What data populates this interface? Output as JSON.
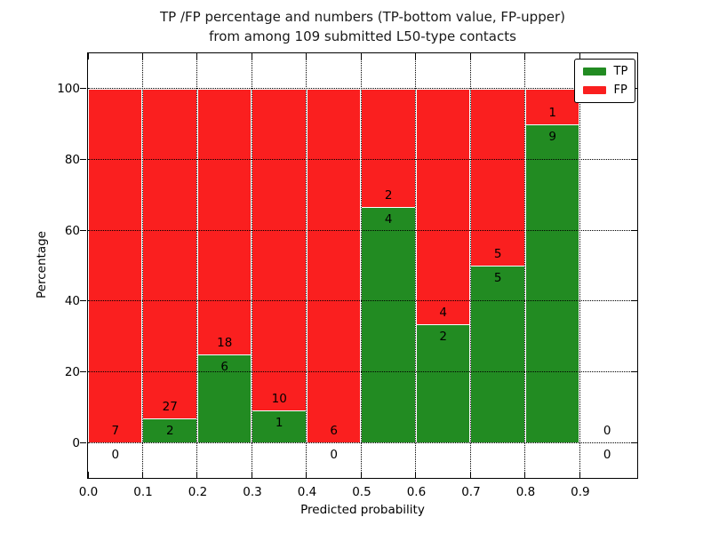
{
  "title": {
    "line1": "TP /FP percentage and numbers (TP-bottom value, FP-upper)",
    "line2": "from among 109 submitted L50-type contacts"
  },
  "chart_data": {
    "type": "bar",
    "stacked": true,
    "title": "TP /FP percentage and numbers (TP-bottom value, FP-upper) from among 109 submitted L50-type contacts",
    "xlabel": "Predicted probability",
    "ylabel": "Percentage",
    "xlim": [
      0,
      1.005
    ],
    "ylim": [
      -10,
      110
    ],
    "grid": true,
    "legend_position": "upper right",
    "total_submitted_contacts": 109,
    "x_ticks": [
      "0.0",
      "0.1",
      "0.2",
      "0.3",
      "0.4",
      "0.5",
      "0.6",
      "0.7",
      "0.8",
      "0.9"
    ],
    "x_tick_values": [
      0,
      0.1,
      0.2,
      0.3,
      0.4,
      0.5,
      0.6,
      0.7,
      0.8,
      0.9
    ],
    "y_ticks": [
      0,
      20,
      40,
      60,
      80,
      100
    ],
    "bin_width": 0.1,
    "series": [
      {
        "name": "TP",
        "color": "#228b22",
        "values": [
          0,
          2,
          6,
          1,
          0,
          4,
          2,
          5,
          9,
          0
        ]
      },
      {
        "name": "FP",
        "color": "#fa1f1f",
        "values": [
          7,
          27,
          18,
          10,
          6,
          2,
          4,
          5,
          1,
          0
        ]
      }
    ],
    "bins": [
      {
        "x0": 0.0,
        "x1": 0.1,
        "tp": 0,
        "fp": 7,
        "tp_pct": 0,
        "fp_pct": 100
      },
      {
        "x0": 0.1,
        "x1": 0.2,
        "tp": 2,
        "fp": 27,
        "tp_pct": 6.9,
        "fp_pct": 93.1
      },
      {
        "x0": 0.2,
        "x1": 0.3,
        "tp": 6,
        "fp": 18,
        "tp_pct": 25,
        "fp_pct": 75
      },
      {
        "x0": 0.3,
        "x1": 0.4,
        "tp": 1,
        "fp": 10,
        "tp_pct": 9.09,
        "fp_pct": 90.91
      },
      {
        "x0": 0.4,
        "x1": 0.5,
        "tp": 0,
        "fp": 6,
        "tp_pct": 0,
        "fp_pct": 100
      },
      {
        "x0": 0.5,
        "x1": 0.6,
        "tp": 4,
        "fp": 2,
        "tp_pct": 66.67,
        "fp_pct": 33.33
      },
      {
        "x0": 0.6,
        "x1": 0.7,
        "tp": 2,
        "fp": 4,
        "tp_pct": 33.33,
        "fp_pct": 66.67
      },
      {
        "x0": 0.7,
        "x1": 0.8,
        "tp": 5,
        "fp": 5,
        "tp_pct": 50,
        "fp_pct": 50
      },
      {
        "x0": 0.8,
        "x1": 0.9,
        "tp": 9,
        "fp": 1,
        "tp_pct": 90,
        "fp_pct": 10
      },
      {
        "x0": 0.9,
        "x1": 1.0,
        "tp": 0,
        "fp": 0,
        "tp_pct": null,
        "fp_pct": null
      }
    ],
    "legend": [
      {
        "label": "TP",
        "color": "#228b22"
      },
      {
        "label": "FP",
        "color": "#fa1f1f"
      }
    ],
    "colors": {
      "tp": "#228b22",
      "fp": "#fa1f1f",
      "grid": "#000000",
      "bar_edge": "#ffffff"
    }
  }
}
